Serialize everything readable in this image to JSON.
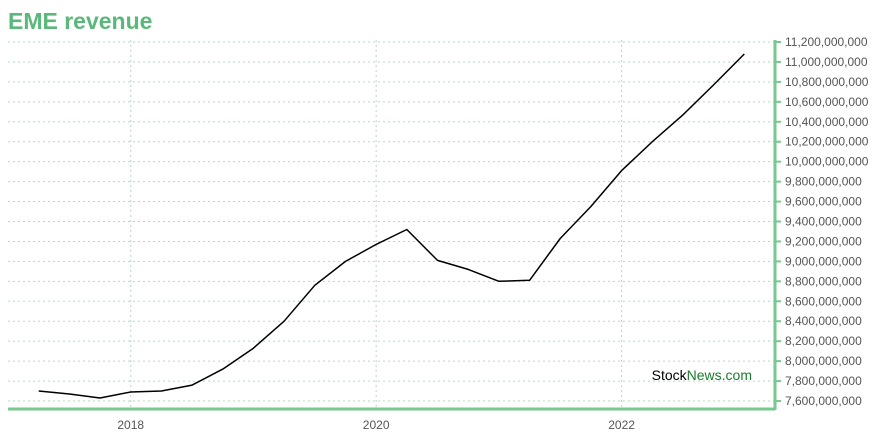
{
  "chart_data": {
    "type": "line",
    "title": "EME revenue",
    "xlabel": "",
    "ylabel": "",
    "x_axis": {
      "tick_labels": [
        "2018",
        "2020",
        "2022"
      ],
      "tick_values": [
        2018.0,
        2020.0,
        2022.0
      ],
      "range": [
        2017.0,
        2023.25
      ]
    },
    "y_axis": {
      "position": "right",
      "range": [
        7520000000,
        11220000000
      ],
      "ticks": [
        7600000000,
        7800000000,
        8000000000,
        8200000000,
        8400000000,
        8600000000,
        8800000000,
        9000000000,
        9200000000,
        9400000000,
        9600000000,
        9800000000,
        10000000000,
        10200000000,
        10400000000,
        10600000000,
        10800000000,
        11000000000,
        11200000000
      ],
      "tick_labels": [
        "7,600,000,000",
        "7,800,000,000",
        "8,000,000,000",
        "8,200,000,000",
        "8,400,000,000",
        "8,600,000,000",
        "8,800,000,000",
        "9,000,000,000",
        "9,200,000,000",
        "9,400,000,000",
        "9,600,000,000",
        "9,800,000,000",
        "10,000,000,000",
        "10,200,000,000",
        "10,400,000,000",
        "10,600,000,000",
        "10,800,000,000",
        "11,000,000,000",
        "11,200,000,000"
      ]
    },
    "grid": true,
    "series": [
      {
        "color": "#000000",
        "x": [
          2017.25,
          2017.5,
          2017.75,
          2018.0,
          2018.25,
          2018.5,
          2018.75,
          2019.0,
          2019.25,
          2019.5,
          2019.75,
          2020.0,
          2020.25,
          2020.5,
          2020.75,
          2021.0,
          2021.25,
          2021.5,
          2021.75,
          2022.0,
          2022.25,
          2022.5,
          2022.75,
          2023.0
        ],
        "values": [
          7700000000,
          7670000000,
          7630000000,
          7690000000,
          7700000000,
          7760000000,
          7920000000,
          8130000000,
          8400000000,
          8760000000,
          9000000000,
          9170000000,
          9320000000,
          9010000000,
          8920000000,
          8800000000,
          8810000000,
          9230000000,
          9550000000,
          9910000000,
          10200000000,
          10470000000,
          10770000000,
          11080000000
        ]
      }
    ]
  },
  "watermark": {
    "part1": "Stock",
    "part2": "News.com"
  },
  "colors": {
    "title": "#5ab87a",
    "axis": "#77c98f",
    "grid": "#b3d9c2",
    "line": "#000000",
    "watermark_dark": "#000000",
    "watermark_green": "#1a7a2e"
  }
}
